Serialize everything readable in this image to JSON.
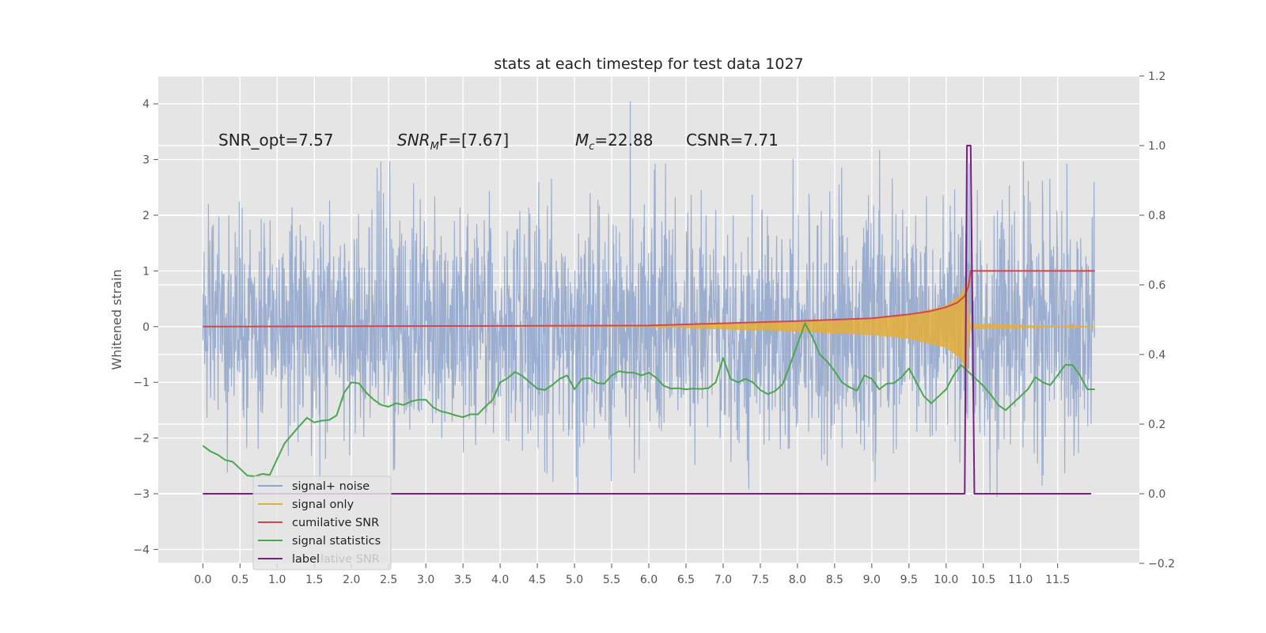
{
  "chart_data": {
    "type": "line",
    "title": "stats at each timestep for test data 1027",
    "ylabel": "Whitened strain",
    "xlabel": "",
    "xlim": [
      -0.6,
      12.6
    ],
    "ylim": [
      -4.25,
      4.5
    ],
    "y2lim": [
      -0.2,
      1.2
    ],
    "x_ticks": [
      0.0,
      0.5,
      1.0,
      1.5,
      2.0,
      2.5,
      3.0,
      3.5,
      4.0,
      4.5,
      5.0,
      5.5,
      6.0,
      6.5,
      7.0,
      7.5,
      8.0,
      8.5,
      9.0,
      9.5,
      10.0,
      10.5,
      11.0,
      11.5
    ],
    "x_tick_labels": [
      "0.0",
      "0.5",
      "1.0",
      "1.5",
      "2.0",
      "2.5",
      "3.0",
      "3.5",
      "4.0",
      "4.5",
      "5.0",
      "5.5",
      "6.0",
      "6.5",
      "7.0",
      "7.5",
      "8.0",
      "8.5",
      "9.0",
      "9.5",
      "10.0",
      "10.5",
      "11.0",
      "11.5"
    ],
    "y_ticks": [
      -4,
      -3,
      -2,
      -1,
      0,
      1,
      2,
      3,
      4
    ],
    "y_tick_labels": [
      "−4",
      "−3",
      "−2",
      "−1",
      "0",
      "1",
      "2",
      "3",
      "4"
    ],
    "y2_ticks": [
      -0.2,
      0.0,
      0.2,
      0.4,
      0.6,
      0.8,
      1.0,
      1.2
    ],
    "y2_tick_labels": [
      "−0.2",
      "0.0",
      "0.2",
      "0.4",
      "0.6",
      "0.8",
      "1.0",
      "1.2"
    ],
    "grid": true,
    "legend_position": "lower-left",
    "annotations": {
      "snr_opt": "SNR_opt=7.57",
      "snr_mf_main": "SNR",
      "snr_mf_sub": "M",
      "snr_mf_rest": "F=[7.67]",
      "mc_main": "M",
      "mc_sub": "c",
      "mc_rest": "=22.88",
      "csnr": "CSNR=7.71"
    },
    "series": [
      {
        "name": "signal+ noise",
        "axis": "left",
        "color": "#8fa5cb",
        "noise_envelope": {
          "x_start": 0.0,
          "x_end": 12.0,
          "typical_range": [
            -2.2,
            2.3
          ],
          "extreme_range": [
            -3.8,
            4.1
          ]
        }
      },
      {
        "name": "signal only",
        "axis": "left",
        "color": "#e5ae38",
        "envelope": [
          {
            "x": 6.0,
            "amp": 0.0
          },
          {
            "x": 7.0,
            "amp": 0.05
          },
          {
            "x": 8.0,
            "amp": 0.09
          },
          {
            "x": 9.0,
            "amp": 0.15
          },
          {
            "x": 9.5,
            "amp": 0.22
          },
          {
            "x": 10.0,
            "amp": 0.38
          },
          {
            "x": 10.2,
            "amp": 0.58
          },
          {
            "x": 10.28,
            "amp": 0.85
          },
          {
            "x": 10.31,
            "amp": 0.05
          },
          {
            "x": 12.0,
            "amp": 0.0
          }
        ]
      },
      {
        "name": "cumilative SNR",
        "axis": "left",
        "color": "#d0474f",
        "points": [
          [
            0.0,
            0.0
          ],
          [
            6.0,
            0.02
          ],
          [
            7.0,
            0.06
          ],
          [
            8.0,
            0.1
          ],
          [
            9.0,
            0.15
          ],
          [
            9.5,
            0.22
          ],
          [
            9.8,
            0.28
          ],
          [
            10.0,
            0.35
          ],
          [
            10.15,
            0.43
          ],
          [
            10.25,
            0.55
          ],
          [
            10.3,
            0.72
          ],
          [
            10.33,
            1.0
          ],
          [
            12.0,
            1.0
          ]
        ]
      },
      {
        "name": "signal statistics",
        "axis": "right",
        "color": "#4ca64f",
        "points": [
          [
            0.0,
            0.138
          ],
          [
            0.1,
            0.122
          ],
          [
            0.2,
            0.112
          ],
          [
            0.3,
            0.097
          ],
          [
            0.4,
            0.092
          ],
          [
            0.5,
            0.072
          ],
          [
            0.6,
            0.052
          ],
          [
            0.7,
            0.05
          ],
          [
            0.8,
            0.057
          ],
          [
            0.9,
            0.054
          ],
          [
            1.0,
            0.1
          ],
          [
            1.1,
            0.145
          ],
          [
            1.2,
            0.17
          ],
          [
            1.3,
            0.195
          ],
          [
            1.4,
            0.218
          ],
          [
            1.5,
            0.205
          ],
          [
            1.6,
            0.21
          ],
          [
            1.7,
            0.212
          ],
          [
            1.8,
            0.225
          ],
          [
            1.9,
            0.29
          ],
          [
            2.0,
            0.32
          ],
          [
            2.1,
            0.317
          ],
          [
            2.2,
            0.29
          ],
          [
            2.3,
            0.27
          ],
          [
            2.4,
            0.255
          ],
          [
            2.5,
            0.25
          ],
          [
            2.6,
            0.26
          ],
          [
            2.7,
            0.255
          ],
          [
            2.8,
            0.265
          ],
          [
            2.9,
            0.27
          ],
          [
            3.0,
            0.27
          ],
          [
            3.1,
            0.248
          ],
          [
            3.2,
            0.237
          ],
          [
            3.3,
            0.232
          ],
          [
            3.4,
            0.225
          ],
          [
            3.5,
            0.22
          ],
          [
            3.6,
            0.228
          ],
          [
            3.7,
            0.228
          ],
          [
            3.8,
            0.25
          ],
          [
            3.9,
            0.27
          ],
          [
            4.0,
            0.32
          ],
          [
            4.1,
            0.332
          ],
          [
            4.2,
            0.35
          ],
          [
            4.3,
            0.338
          ],
          [
            4.4,
            0.32
          ],
          [
            4.5,
            0.302
          ],
          [
            4.6,
            0.298
          ],
          [
            4.7,
            0.312
          ],
          [
            4.8,
            0.33
          ],
          [
            4.9,
            0.34
          ],
          [
            5.0,
            0.3
          ],
          [
            5.1,
            0.33
          ],
          [
            5.2,
            0.332
          ],
          [
            5.3,
            0.318
          ],
          [
            5.4,
            0.316
          ],
          [
            5.5,
            0.34
          ],
          [
            5.6,
            0.352
          ],
          [
            5.7,
            0.348
          ],
          [
            5.8,
            0.348
          ],
          [
            5.9,
            0.34
          ],
          [
            6.0,
            0.348
          ],
          [
            6.1,
            0.333
          ],
          [
            6.2,
            0.31
          ],
          [
            6.3,
            0.302
          ],
          [
            6.4,
            0.303
          ],
          [
            6.5,
            0.3
          ],
          [
            6.6,
            0.302
          ],
          [
            6.7,
            0.301
          ],
          [
            6.8,
            0.303
          ],
          [
            6.9,
            0.32
          ],
          [
            7.0,
            0.39
          ],
          [
            7.1,
            0.33
          ],
          [
            7.2,
            0.32
          ],
          [
            7.3,
            0.33
          ],
          [
            7.4,
            0.32
          ],
          [
            7.5,
            0.298
          ],
          [
            7.6,
            0.286
          ],
          [
            7.7,
            0.295
          ],
          [
            7.8,
            0.315
          ],
          [
            7.9,
            0.37
          ],
          [
            8.0,
            0.43
          ],
          [
            8.1,
            0.49
          ],
          [
            8.2,
            0.45
          ],
          [
            8.3,
            0.4
          ],
          [
            8.4,
            0.38
          ],
          [
            8.5,
            0.352
          ],
          [
            8.6,
            0.32
          ],
          [
            8.7,
            0.306
          ],
          [
            8.8,
            0.296
          ],
          [
            8.9,
            0.34
          ],
          [
            9.0,
            0.33
          ],
          [
            9.1,
            0.3
          ],
          [
            9.2,
            0.316
          ],
          [
            9.3,
            0.318
          ],
          [
            9.4,
            0.335
          ],
          [
            9.5,
            0.36
          ],
          [
            9.6,
            0.32
          ],
          [
            9.7,
            0.28
          ],
          [
            9.8,
            0.26
          ],
          [
            9.9,
            0.28
          ],
          [
            10.0,
            0.3
          ],
          [
            10.1,
            0.34
          ],
          [
            10.2,
            0.37
          ],
          [
            10.3,
            0.35
          ],
          [
            10.4,
            0.33
          ],
          [
            10.5,
            0.31
          ],
          [
            10.6,
            0.285
          ],
          [
            10.7,
            0.255
          ],
          [
            10.8,
            0.24
          ],
          [
            10.9,
            0.26
          ],
          [
            11.0,
            0.28
          ],
          [
            11.1,
            0.3
          ],
          [
            11.2,
            0.335
          ],
          [
            11.3,
            0.32
          ],
          [
            11.4,
            0.312
          ],
          [
            11.5,
            0.34
          ],
          [
            11.6,
            0.37
          ],
          [
            11.7,
            0.37
          ],
          [
            11.8,
            0.34
          ],
          [
            11.9,
            0.3
          ],
          [
            12.0,
            0.3
          ]
        ]
      },
      {
        "name": "label",
        "axis": "right",
        "color": "#7b1f85",
        "points": [
          [
            0.0,
            0.0
          ],
          [
            10.25,
            0.0
          ],
          [
            10.28,
            1.0
          ],
          [
            10.33,
            1.0
          ],
          [
            10.38,
            0.0
          ],
          [
            11.95,
            0.0
          ]
        ]
      }
    ]
  },
  "legend_overlap_text": "lative SNR"
}
